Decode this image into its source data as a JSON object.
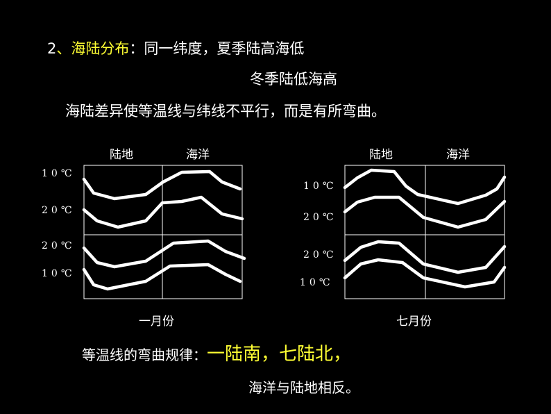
{
  "heading": {
    "number": "2",
    "topic": "、海陆分布",
    "line1": "：同一纬度，夏季陆高海低",
    "line2": "冬季陆低海高"
  },
  "statement": "海陆差异使等温线与纬线不平行，而是有所弯曲。",
  "diagrams": [
    {
      "columns": [
        "陆地",
        "海洋"
      ],
      "isotherm_labels": [
        "10℃",
        "20℃",
        "20℃",
        "10℃"
      ],
      "caption": "一月份"
    },
    {
      "columns": [
        "陆地",
        "海洋"
      ],
      "isotherm_labels": [
        "10℃",
        "20℃",
        "20℃",
        "10℃"
      ],
      "caption": "七月份"
    }
  ],
  "rule": {
    "lead": "等温线的弯曲规律：",
    "highlight": "一陆南，七陆北，",
    "line2": "海洋与陆地相反。"
  }
}
